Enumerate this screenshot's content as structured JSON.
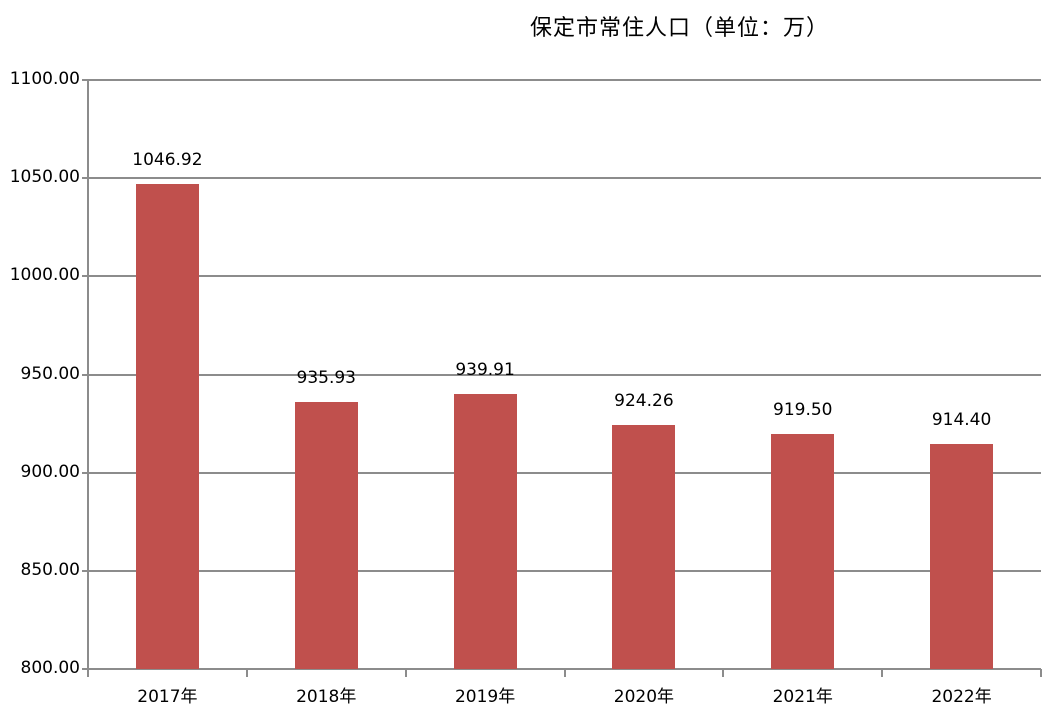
{
  "chart_data": {
    "type": "bar",
    "title": "保定市常住人口（单位：万）",
    "xlabel": "",
    "ylabel": "",
    "categories": [
      "2017年",
      "2018年",
      "2019年",
      "2020年",
      "2021年",
      "2022年"
    ],
    "values": [
      1046.92,
      935.93,
      939.91,
      924.26,
      919.5,
      914.4
    ],
    "value_labels": [
      "1046.92",
      "935.93",
      "939.91",
      "924.26",
      "919.50",
      "914.40"
    ],
    "ylim": [
      800,
      1100
    ],
    "yticks": [
      "1100.00",
      "1050.00",
      "1000.00",
      "950.00",
      "900.00",
      "850.00",
      "800.00"
    ],
    "grid": true,
    "legend": null,
    "bar_color": "#c0504d"
  }
}
